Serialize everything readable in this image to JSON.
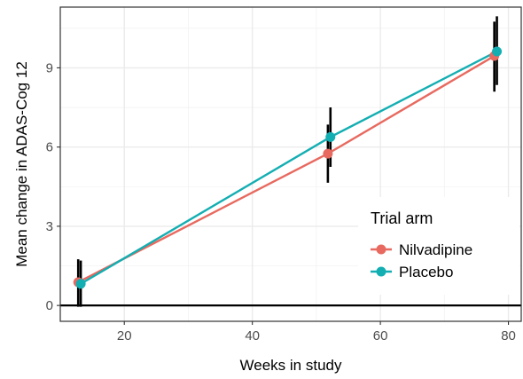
{
  "chart_data": {
    "type": "line",
    "xlabel": "Weeks in study",
    "ylabel": "Mean change in ADAS-Cog 12",
    "xlim": [
      10,
      82
    ],
    "ylim": [
      -0.6,
      11.3
    ],
    "x_ticks": [
      20,
      40,
      60,
      80
    ],
    "y_ticks": [
      0,
      3,
      6,
      9
    ],
    "grid": true,
    "reference_line_y": 0,
    "legend": {
      "title": "Trial arm",
      "position": "bottom-right-inside"
    },
    "series": [
      {
        "name": "Nilvadipine",
        "color": "#E8695F",
        "points": [
          {
            "x": 12.8,
            "y": 0.88,
            "lo": -0.05,
            "hi": 1.75
          },
          {
            "x": 51.8,
            "y": 5.75,
            "lo": 4.65,
            "hi": 6.85
          },
          {
            "x": 77.8,
            "y": 9.45,
            "lo": 8.1,
            "hi": 10.75
          }
        ]
      },
      {
        "name": "Placebo",
        "color": "#13AEB2",
        "points": [
          {
            "x": 13.2,
            "y": 0.82,
            "lo": -0.05,
            "hi": 1.7
          },
          {
            "x": 52.2,
            "y": 6.38,
            "lo": 5.25,
            "hi": 7.5
          },
          {
            "x": 78.2,
            "y": 9.62,
            "lo": 8.35,
            "hi": 10.95
          }
        ]
      }
    ]
  }
}
